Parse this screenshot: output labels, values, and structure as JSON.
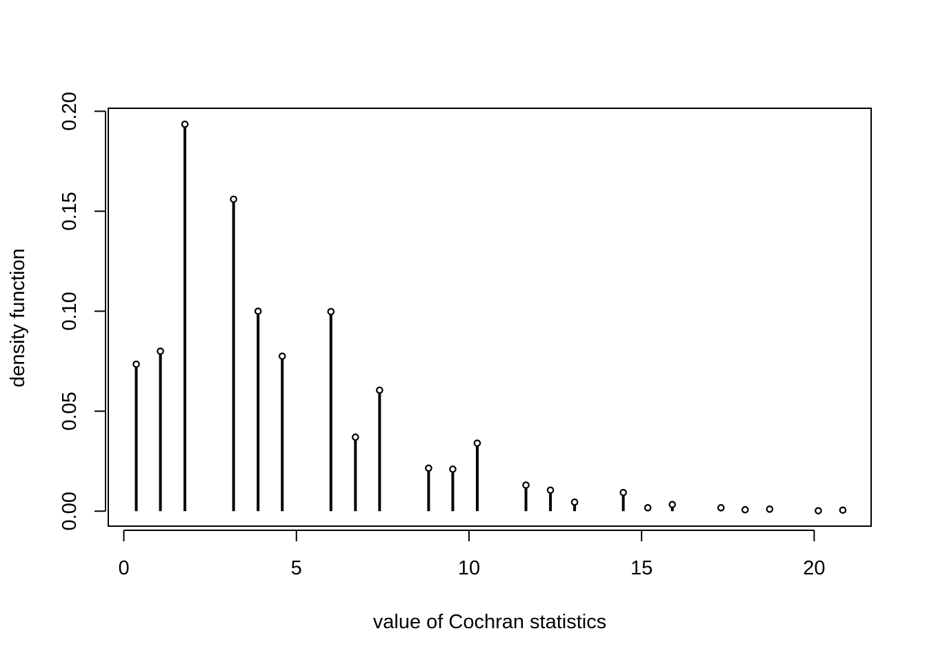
{
  "chart_data": {
    "type": "stem",
    "title": "",
    "xlabel": "value of Cochran statistics",
    "ylabel": "density function",
    "xlim": [
      -0.45,
      21.65
    ],
    "ylim": [
      -0.0075,
      0.2015
    ],
    "xticks": [
      0,
      5,
      10,
      15,
      20
    ],
    "xtick_labels": [
      "0",
      "5",
      "10",
      "15",
      "20"
    ],
    "yticks": [
      0.0,
      0.05,
      0.1,
      0.15,
      0.2
    ],
    "ytick_labels": [
      "0.00",
      "0.05",
      "0.10",
      "0.15",
      "0.20"
    ],
    "grid": false,
    "points": [
      {
        "x": 0.36,
        "y": 0.0735
      },
      {
        "x": 1.06,
        "y": 0.08
      },
      {
        "x": 1.77,
        "y": 0.1935
      },
      {
        "x": 3.18,
        "y": 0.156
      },
      {
        "x": 3.89,
        "y": 0.1
      },
      {
        "x": 4.59,
        "y": 0.0775
      },
      {
        "x": 6.0,
        "y": 0.0998
      },
      {
        "x": 6.71,
        "y": 0.037
      },
      {
        "x": 7.41,
        "y": 0.0605
      },
      {
        "x": 8.83,
        "y": 0.0215
      },
      {
        "x": 9.53,
        "y": 0.021
      },
      {
        "x": 10.24,
        "y": 0.034
      },
      {
        "x": 11.65,
        "y": 0.013
      },
      {
        "x": 12.36,
        "y": 0.0105
      },
      {
        "x": 13.06,
        "y": 0.0045
      },
      {
        "x": 14.47,
        "y": 0.0093
      },
      {
        "x": 15.18,
        "y": 0.0017
      },
      {
        "x": 15.89,
        "y": 0.0033
      },
      {
        "x": 17.3,
        "y": 0.0017
      },
      {
        "x": 18.0,
        "y": 0.0007
      },
      {
        "x": 18.71,
        "y": 0.001
      },
      {
        "x": 20.12,
        "y": 0.0002
      },
      {
        "x": 20.83,
        "y": 0.0005
      }
    ]
  }
}
